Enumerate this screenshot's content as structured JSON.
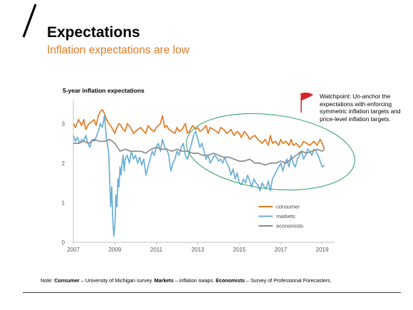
{
  "slide": {
    "title": "Expectations",
    "subtitle": "Inflation expectations are low",
    "accent_color": "#e07b24"
  },
  "watchpoint": {
    "icon": "red-flag-icon",
    "text": "Watchpoint: Un-anchor the expectations with enforcing symmetric inflation targets and price-level inflation targets."
  },
  "note": {
    "prefix": "Note: ",
    "items": [
      {
        "label": "Consumer",
        "desc": " – University of Michigan survey. "
      },
      {
        "label": "Markets",
        "desc": " – inflation swaps. "
      },
      {
        "label": "Economists",
        "desc": " – Survey of Professional Forecasters."
      }
    ]
  },
  "chart_data": {
    "type": "line",
    "title": "5-year inflation expectations",
    "xlabel": "",
    "ylabel": "",
    "x_ticks": [
      "2007",
      "2009",
      "2011",
      "2013",
      "2015",
      "2017",
      "2019"
    ],
    "y_ticks": [
      "0",
      "1",
      "2",
      "3"
    ],
    "xlim": [
      2007,
      2019.6
    ],
    "ylim": [
      0,
      3.6
    ],
    "grid": false,
    "legend_position": "bottom-right",
    "highlight": "ellipse around 2012.5-2019.5 region",
    "series": [
      {
        "name": "consumer",
        "color": "#e07b24",
        "x": [
          2007.0,
          2007.1,
          2007.25,
          2007.4,
          2007.5,
          2007.6,
          2007.75,
          2007.9,
          2008.0,
          2008.1,
          2008.2,
          2008.3,
          2008.4,
          2008.5,
          2008.6,
          2008.7,
          2008.8,
          2008.9,
          2009.0,
          2009.1,
          2009.2,
          2009.3,
          2009.4,
          2009.5,
          2009.6,
          2009.75,
          2009.9,
          2010.0,
          2010.1,
          2010.25,
          2010.4,
          2010.5,
          2010.6,
          2010.75,
          2010.9,
          2011.0,
          2011.1,
          2011.2,
          2011.3,
          2011.4,
          2011.5,
          2011.6,
          2011.75,
          2011.9,
          2012.0,
          2012.1,
          2012.25,
          2012.4,
          2012.5,
          2012.6,
          2012.75,
          2012.9,
          2013.0,
          2013.1,
          2013.25,
          2013.4,
          2013.5,
          2013.6,
          2013.75,
          2013.9,
          2014.0,
          2014.1,
          2014.25,
          2014.4,
          2014.5,
          2014.6,
          2014.75,
          2014.9,
          2015.0,
          2015.1,
          2015.25,
          2015.4,
          2015.5,
          2015.6,
          2015.75,
          2015.9,
          2016.0,
          2016.1,
          2016.25,
          2016.4,
          2016.5,
          2016.6,
          2016.75,
          2016.9,
          2017.0,
          2017.1,
          2017.25,
          2017.4,
          2017.5,
          2017.6,
          2017.75,
          2017.9,
          2018.0,
          2018.1,
          2018.25,
          2018.4,
          2018.5,
          2018.6,
          2018.75,
          2018.9,
          2019.0,
          2019.1
        ],
        "values": [
          3.0,
          2.9,
          3.1,
          2.95,
          3.1,
          2.85,
          3.0,
          3.05,
          3.1,
          2.95,
          3.2,
          3.3,
          3.35,
          3.25,
          3.1,
          3.0,
          2.95,
          2.85,
          2.75,
          2.9,
          3.0,
          2.95,
          2.85,
          2.8,
          3.0,
          2.9,
          2.75,
          2.8,
          2.85,
          2.9,
          2.8,
          2.75,
          2.95,
          2.85,
          2.8,
          2.9,
          2.95,
          3.0,
          3.2,
          2.9,
          2.95,
          2.85,
          2.8,
          2.75,
          2.9,
          2.8,
          2.85,
          3.0,
          2.75,
          2.8,
          2.95,
          2.85,
          2.9,
          2.8,
          2.85,
          2.95,
          2.75,
          2.9,
          2.85,
          2.8,
          2.75,
          2.9,
          2.85,
          2.75,
          2.8,
          2.85,
          2.7,
          2.8,
          2.75,
          2.65,
          2.8,
          2.7,
          2.6,
          2.65,
          2.7,
          2.6,
          2.55,
          2.5,
          2.6,
          2.45,
          2.7,
          2.5,
          2.55,
          2.45,
          2.6,
          2.5,
          2.55,
          2.45,
          2.6,
          2.45,
          2.5,
          2.4,
          2.45,
          2.55,
          2.5,
          2.45,
          2.5,
          2.55,
          2.45,
          2.6,
          2.5,
          2.35
        ]
      },
      {
        "name": "markets",
        "color": "#6baed6",
        "x": [
          2007.0,
          2007.1,
          2007.2,
          2007.3,
          2007.4,
          2007.5,
          2007.6,
          2007.7,
          2007.8,
          2007.9,
          2008.0,
          2008.1,
          2008.2,
          2008.3,
          2008.4,
          2008.5,
          2008.6,
          2008.7,
          2008.75,
          2008.8,
          2008.85,
          2008.9,
          2008.95,
          2009.0,
          2009.05,
          2009.1,
          2009.15,
          2009.2,
          2009.25,
          2009.3,
          2009.35,
          2009.4,
          2009.45,
          2009.5,
          2009.6,
          2009.7,
          2009.8,
          2009.9,
          2010.0,
          2010.1,
          2010.2,
          2010.3,
          2010.4,
          2010.5,
          2010.6,
          2010.7,
          2010.8,
          2010.9,
          2011.0,
          2011.1,
          2011.2,
          2011.3,
          2011.4,
          2011.5,
          2011.6,
          2011.7,
          2011.8,
          2011.9,
          2012.0,
          2012.1,
          2012.2,
          2012.3,
          2012.4,
          2012.5,
          2012.6,
          2012.7,
          2012.8,
          2012.9,
          2013.0,
          2013.1,
          2013.2,
          2013.3,
          2013.4,
          2013.5,
          2013.6,
          2013.7,
          2013.8,
          2013.9,
          2014.0,
          2014.1,
          2014.2,
          2014.3,
          2014.4,
          2014.5,
          2014.6,
          2014.7,
          2014.8,
          2014.9,
          2015.0,
          2015.1,
          2015.2,
          2015.3,
          2015.4,
          2015.5,
          2015.6,
          2015.7,
          2015.8,
          2015.9,
          2016.0,
          2016.1,
          2016.2,
          2016.3,
          2016.4,
          2016.5,
          2016.6,
          2016.7,
          2016.8,
          2016.9,
          2017.0,
          2017.1,
          2017.2,
          2017.3,
          2017.4,
          2017.5,
          2017.6,
          2017.7,
          2017.8,
          2017.9,
          2018.0,
          2018.1,
          2018.2,
          2018.3,
          2018.4,
          2018.5,
          2018.6,
          2018.7,
          2018.8,
          2018.9,
          2019.0,
          2019.1
        ],
        "values": [
          2.7,
          2.55,
          2.65,
          2.5,
          2.6,
          2.55,
          2.7,
          2.5,
          2.4,
          2.6,
          2.55,
          2.65,
          2.8,
          3.0,
          2.9,
          3.2,
          2.6,
          2.3,
          1.6,
          0.9,
          1.4,
          0.6,
          0.15,
          0.4,
          1.2,
          0.9,
          1.6,
          1.4,
          1.9,
          1.7,
          2.0,
          2.2,
          1.8,
          2.1,
          2.2,
          2.0,
          2.3,
          2.1,
          2.2,
          2.0,
          2.15,
          1.95,
          2.1,
          1.7,
          1.9,
          2.1,
          2.3,
          2.2,
          2.4,
          2.5,
          2.3,
          2.6,
          2.4,
          2.35,
          2.2,
          1.8,
          2.0,
          2.1,
          2.3,
          2.2,
          2.4,
          2.5,
          2.2,
          2.1,
          2.3,
          2.5,
          2.7,
          2.8,
          2.6,
          2.4,
          2.5,
          2.3,
          2.1,
          2.2,
          2.0,
          2.1,
          2.2,
          2.15,
          2.05,
          2.1,
          2.0,
          2.15,
          2.0,
          1.9,
          1.7,
          1.85,
          1.6,
          1.75,
          1.5,
          1.45,
          1.6,
          1.5,
          1.7,
          1.55,
          1.4,
          1.6,
          1.5,
          1.45,
          1.3,
          1.5,
          1.4,
          1.35,
          1.55,
          1.3,
          1.6,
          1.7,
          1.8,
          1.9,
          2.0,
          1.8,
          2.0,
          2.1,
          1.9,
          2.2,
          2.0,
          1.9,
          2.1,
          2.2,
          2.3,
          2.1,
          2.2,
          2.35,
          2.3,
          2.2,
          2.35,
          2.3,
          2.2,
          2.05,
          1.9,
          1.95
        ]
      },
      {
        "name": "economists",
        "color": "#8c8c8c",
        "x": [
          2007.0,
          2007.25,
          2007.5,
          2007.75,
          2008.0,
          2008.25,
          2008.5,
          2008.75,
          2009.0,
          2009.25,
          2009.5,
          2009.75,
          2010.0,
          2010.25,
          2010.5,
          2010.75,
          2011.0,
          2011.25,
          2011.5,
          2011.75,
          2012.0,
          2012.25,
          2012.5,
          2012.75,
          2013.0,
          2013.25,
          2013.5,
          2013.75,
          2014.0,
          2014.25,
          2014.5,
          2014.75,
          2015.0,
          2015.25,
          2015.5,
          2015.75,
          2016.0,
          2016.25,
          2016.5,
          2016.75,
          2017.0,
          2017.25,
          2017.5,
          2017.75,
          2018.0,
          2018.25,
          2018.5,
          2018.75,
          2019.0,
          2019.1
        ],
        "values": [
          2.5,
          2.5,
          2.55,
          2.5,
          2.6,
          2.55,
          2.55,
          2.6,
          2.5,
          2.3,
          2.35,
          2.3,
          2.3,
          2.3,
          2.25,
          2.35,
          2.4,
          2.35,
          2.35,
          2.3,
          2.35,
          2.3,
          2.3,
          2.25,
          2.25,
          2.2,
          2.2,
          2.25,
          2.2,
          2.15,
          2.15,
          2.1,
          2.05,
          2.05,
          2.1,
          2.0,
          2.0,
          1.95,
          2.0,
          2.0,
          2.05,
          2.0,
          2.1,
          2.2,
          2.3,
          2.25,
          2.3,
          2.35,
          2.3,
          2.35
        ]
      }
    ]
  }
}
